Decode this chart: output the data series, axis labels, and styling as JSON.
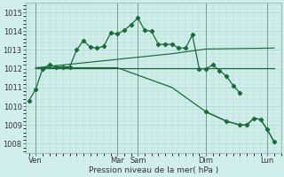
{
  "xlabel": "Pression niveau de la mer( hPa )",
  "background_color": "#d0eeea",
  "grid_color": "#b0d8d0",
  "line_color": "#1a6b3a",
  "ylim": [
    1007.5,
    1015.5
  ],
  "yticks": [
    1008,
    1009,
    1010,
    1011,
    1012,
    1013,
    1014,
    1015
  ],
  "xlim": [
    -0.5,
    37
  ],
  "xtick_labels": [
    "Ven",
    "Mar",
    "Sam",
    "Dim",
    "Lun"
  ],
  "xtick_positions": [
    1,
    13,
    16,
    26,
    35
  ],
  "vlines": [
    1,
    13,
    16,
    26,
    35
  ],
  "series0_x": [
    0,
    1,
    2,
    3,
    4,
    5,
    6,
    7,
    8,
    9,
    10,
    11,
    12,
    13,
    14,
    15,
    16,
    17,
    18,
    19,
    20,
    21,
    22,
    23,
    24,
    25,
    26,
    27,
    28,
    29,
    30,
    31
  ],
  "series0_y": [
    1010.3,
    1010.9,
    1012.0,
    1012.2,
    1012.1,
    1012.1,
    1012.1,
    1013.0,
    1013.5,
    1013.15,
    1013.1,
    1013.2,
    1013.9,
    1013.85,
    1014.05,
    1014.35,
    1014.7,
    1014.05,
    1014.0,
    1013.3,
    1013.3,
    1013.3,
    1013.1,
    1013.1,
    1013.8,
    1012.0,
    1012.0,
    1012.2,
    1011.9,
    1011.6,
    1011.1,
    1010.7
  ],
  "series1_x": [
    1,
    13,
    21,
    26,
    36
  ],
  "series1_y": [
    1012.05,
    1012.5,
    1012.8,
    1013.05,
    1013.1
  ],
  "series2_x": [
    1,
    13,
    21,
    26,
    36
  ],
  "series2_y": [
    1012.05,
    1012.05,
    1012.05,
    1012.05,
    1012.05
  ],
  "series3_x": [
    1,
    13,
    21,
    26,
    29,
    31,
    32,
    33,
    34,
    35,
    36
  ],
  "series3_y": [
    1012.05,
    1012.05,
    1011.0,
    1009.7,
    1009.2,
    1009.0,
    1009.0,
    1009.35,
    1009.3,
    1008.75,
    1008.1
  ],
  "series3_markers_x": [
    26,
    29,
    31,
    32,
    33,
    34,
    35,
    36
  ],
  "series3_markers_y": [
    1009.7,
    1009.2,
    1009.0,
    1009.0,
    1009.35,
    1009.3,
    1008.75,
    1008.1
  ]
}
